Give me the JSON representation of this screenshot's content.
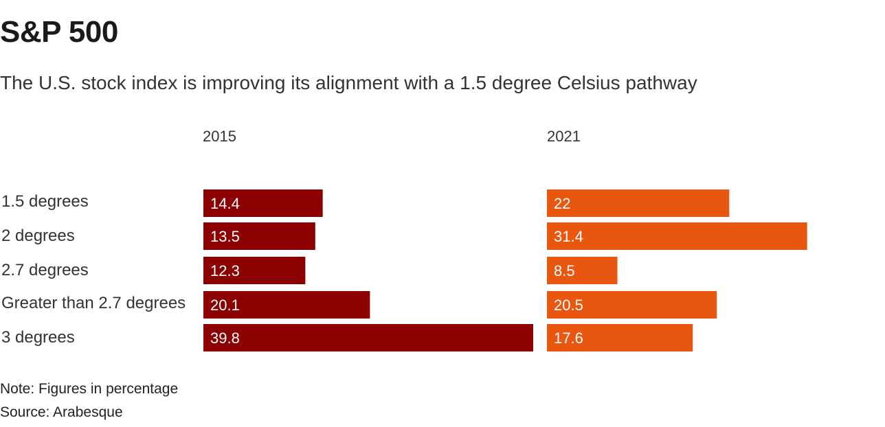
{
  "chart_data": {
    "type": "bar",
    "orientation": "horizontal",
    "title": "S&P 500",
    "subtitle": "The U.S. stock index is improving its alignment with a 1.5 degree Celsius pathway",
    "categories": [
      "1.5 degrees",
      "2 degrees",
      "2.7 degrees",
      "Greater than 2.7 degrees",
      "3 degrees"
    ],
    "series": [
      {
        "name": "2015",
        "values": [
          14.4,
          13.5,
          12.3,
          20.1,
          39.8
        ],
        "color": "#8b0000"
      },
      {
        "name": "2021",
        "values": [
          22,
          31.4,
          8.5,
          20.5,
          17.6
        ],
        "color": "#e8560f"
      }
    ],
    "xlabel": "",
    "ylabel": "",
    "xlim": [
      0,
      39.8
    ],
    "grid": false,
    "legend": "none",
    "notes": [
      "Note: Figures in percentage",
      "Source: Arabesque"
    ]
  }
}
